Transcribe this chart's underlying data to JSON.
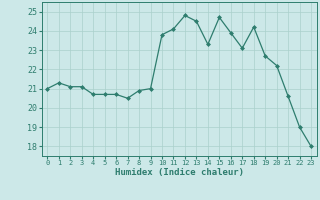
{
  "x": [
    0,
    1,
    2,
    3,
    4,
    5,
    6,
    7,
    8,
    9,
    10,
    11,
    12,
    13,
    14,
    15,
    16,
    17,
    18,
    19,
    20,
    21,
    22,
    23
  ],
  "y": [
    21.0,
    21.3,
    21.1,
    21.1,
    20.7,
    20.7,
    20.7,
    20.5,
    20.9,
    21.0,
    23.8,
    24.1,
    24.8,
    24.5,
    23.3,
    24.7,
    23.9,
    23.1,
    24.2,
    22.7,
    22.2,
    20.6,
    19.0,
    18.0
  ],
  "line_color": "#2e7d6e",
  "marker": "D",
  "marker_size": 2.0,
  "bg_color": "#cce8e8",
  "grid_color": "#aad0cc",
  "xlabel": "Humidex (Indice chaleur)",
  "xlim": [
    -0.5,
    23.5
  ],
  "ylim": [
    17.5,
    25.5
  ],
  "yticks": [
    18,
    19,
    20,
    21,
    22,
    23,
    24,
    25
  ],
  "xticks": [
    0,
    1,
    2,
    3,
    4,
    5,
    6,
    7,
    8,
    9,
    10,
    11,
    12,
    13,
    14,
    15,
    16,
    17,
    18,
    19,
    20,
    21,
    22,
    23
  ],
  "tick_color": "#2e7d6e",
  "spine_color": "#2e7d6e",
  "label_color": "#2e7d6e"
}
